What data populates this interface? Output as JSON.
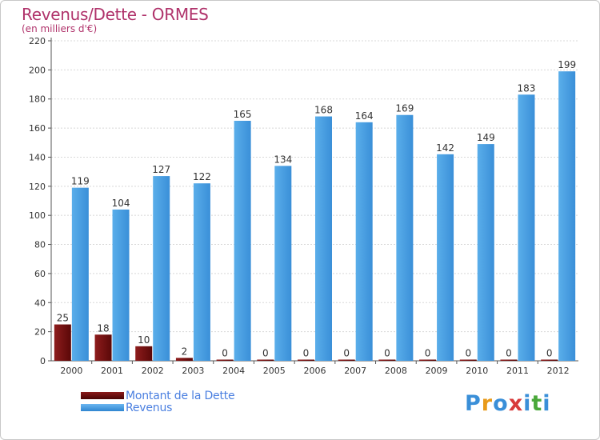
{
  "chart_data": {
    "type": "bar",
    "title": "Revenus/Dette - ORMES",
    "subtitle": "(en milliers d'€)",
    "categories": [
      "2000",
      "2001",
      "2002",
      "2003",
      "2004",
      "2005",
      "2006",
      "2007",
      "2008",
      "2009",
      "2010",
      "2011",
      "2012"
    ],
    "series": [
      {
        "name": "Montant de la Dette",
        "color": "#6b0a0a",
        "values": [
          25,
          18,
          10,
          2,
          0,
          0,
          0,
          0,
          0,
          0,
          0,
          0,
          0
        ]
      },
      {
        "name": "Revenus",
        "color": "#4a9fe0",
        "values": [
          119,
          104,
          127,
          122,
          165,
          134,
          168,
          164,
          169,
          142,
          149,
          183,
          199
        ]
      }
    ],
    "ylim": [
      0,
      220
    ],
    "yticks": [
      0,
      20,
      40,
      60,
      80,
      100,
      120,
      140,
      160,
      180,
      200,
      220
    ],
    "grid": true,
    "legend_position": "bottom-left"
  },
  "logo": {
    "text": "Proxiti"
  }
}
